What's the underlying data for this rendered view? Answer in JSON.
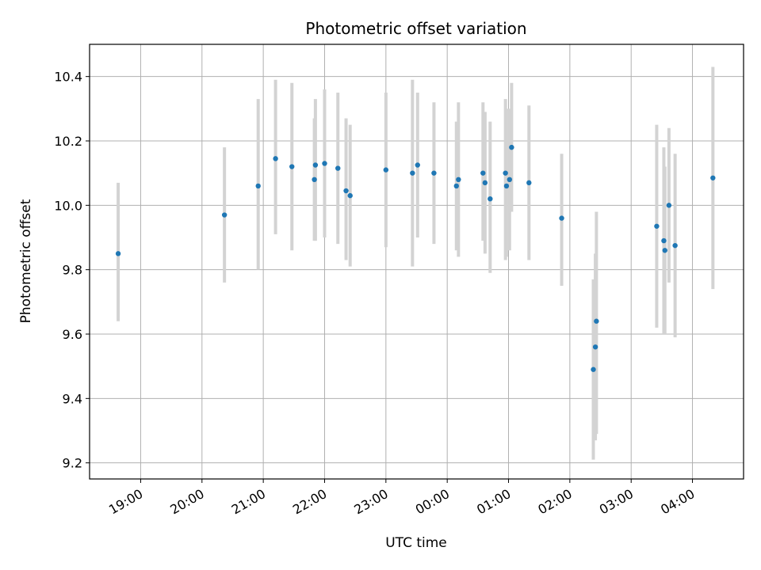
{
  "chart_data": {
    "type": "scatter",
    "title": "Photometric offset variation",
    "xlabel": "UTC time",
    "ylabel": "Photometric offset",
    "xlim": [
      "18:10",
      "04:50"
    ],
    "ylim": [
      9.15,
      10.5
    ],
    "grid": true,
    "x_ticks": [
      "19:00",
      "20:00",
      "21:00",
      "22:00",
      "23:00",
      "00:00",
      "01:00",
      "02:00",
      "03:00",
      "04:00"
    ],
    "y_ticks": [
      9.2,
      9.4,
      9.6,
      9.8,
      10.0,
      10.2,
      10.4
    ],
    "point_color": "#1f77b4",
    "errorbar_color": "#d3d3d3",
    "points": [
      {
        "t": "18:38",
        "y": 9.85,
        "lo": 9.64,
        "hi": 10.07
      },
      {
        "t": "20:22",
        "y": 9.97,
        "lo": 9.76,
        "hi": 10.18
      },
      {
        "t": "20:55",
        "y": 10.06,
        "lo": 9.8,
        "hi": 10.33
      },
      {
        "t": "21:12",
        "y": 10.145,
        "lo": 9.91,
        "hi": 10.39
      },
      {
        "t": "21:28",
        "y": 10.12,
        "lo": 9.86,
        "hi": 10.38
      },
      {
        "t": "21:50",
        "y": 10.08,
        "lo": 9.89,
        "hi": 10.27
      },
      {
        "t": "21:51",
        "y": 10.125,
        "lo": 9.89,
        "hi": 10.33
      },
      {
        "t": "22:00",
        "y": 10.13,
        "lo": 9.9,
        "hi": 10.36
      },
      {
        "t": "22:13",
        "y": 10.115,
        "lo": 9.88,
        "hi": 10.35
      },
      {
        "t": "22:21",
        "y": 10.045,
        "lo": 9.83,
        "hi": 10.27
      },
      {
        "t": "22:25",
        "y": 10.03,
        "lo": 9.81,
        "hi": 10.25
      },
      {
        "t": "23:00",
        "y": 10.11,
        "lo": 9.87,
        "hi": 10.35
      },
      {
        "t": "23:26",
        "y": 10.1,
        "lo": 9.81,
        "hi": 10.39
      },
      {
        "t": "23:31",
        "y": 10.125,
        "lo": 9.9,
        "hi": 10.35
      },
      {
        "t": "23:47",
        "y": 10.1,
        "lo": 9.88,
        "hi": 10.32
      },
      {
        "t": "00:09",
        "y": 10.06,
        "lo": 9.86,
        "hi": 10.26
      },
      {
        "t": "00:11",
        "y": 10.08,
        "lo": 9.84,
        "hi": 10.32
      },
      {
        "t": "00:35",
        "y": 10.1,
        "lo": 9.89,
        "hi": 10.32
      },
      {
        "t": "00:37",
        "y": 10.07,
        "lo": 9.85,
        "hi": 10.29
      },
      {
        "t": "00:42",
        "y": 10.02,
        "lo": 9.79,
        "hi": 10.26
      },
      {
        "t": "00:57",
        "y": 10.1,
        "lo": 9.83,
        "hi": 10.33
      },
      {
        "t": "00:58",
        "y": 10.06,
        "lo": 9.84,
        "hi": 10.3
      },
      {
        "t": "01:01",
        "y": 10.08,
        "lo": 9.86,
        "hi": 10.3
      },
      {
        "t": "01:03",
        "y": 10.18,
        "lo": 9.98,
        "hi": 10.38
      },
      {
        "t": "01:20",
        "y": 10.07,
        "lo": 9.83,
        "hi": 10.31
      },
      {
        "t": "01:52",
        "y": 9.96,
        "lo": 9.75,
        "hi": 10.16
      },
      {
        "t": "02:23",
        "y": 9.49,
        "lo": 9.21,
        "hi": 9.77
      },
      {
        "t": "02:25",
        "y": 9.56,
        "lo": 9.27,
        "hi": 9.85
      },
      {
        "t": "02:26",
        "y": 9.64,
        "lo": 9.29,
        "hi": 9.98
      },
      {
        "t": "03:25",
        "y": 9.935,
        "lo": 9.62,
        "hi": 10.25
      },
      {
        "t": "03:32",
        "y": 9.89,
        "lo": 9.6,
        "hi": 10.18
      },
      {
        "t": "03:33",
        "y": 9.86,
        "lo": 9.6,
        "hi": 10.12
      },
      {
        "t": "03:37",
        "y": 10.0,
        "lo": 9.76,
        "hi": 10.24
      },
      {
        "t": "03:43",
        "y": 9.875,
        "lo": 9.59,
        "hi": 10.16
      },
      {
        "t": "04:20",
        "y": 10.085,
        "lo": 9.74,
        "hi": 10.43
      }
    ]
  }
}
